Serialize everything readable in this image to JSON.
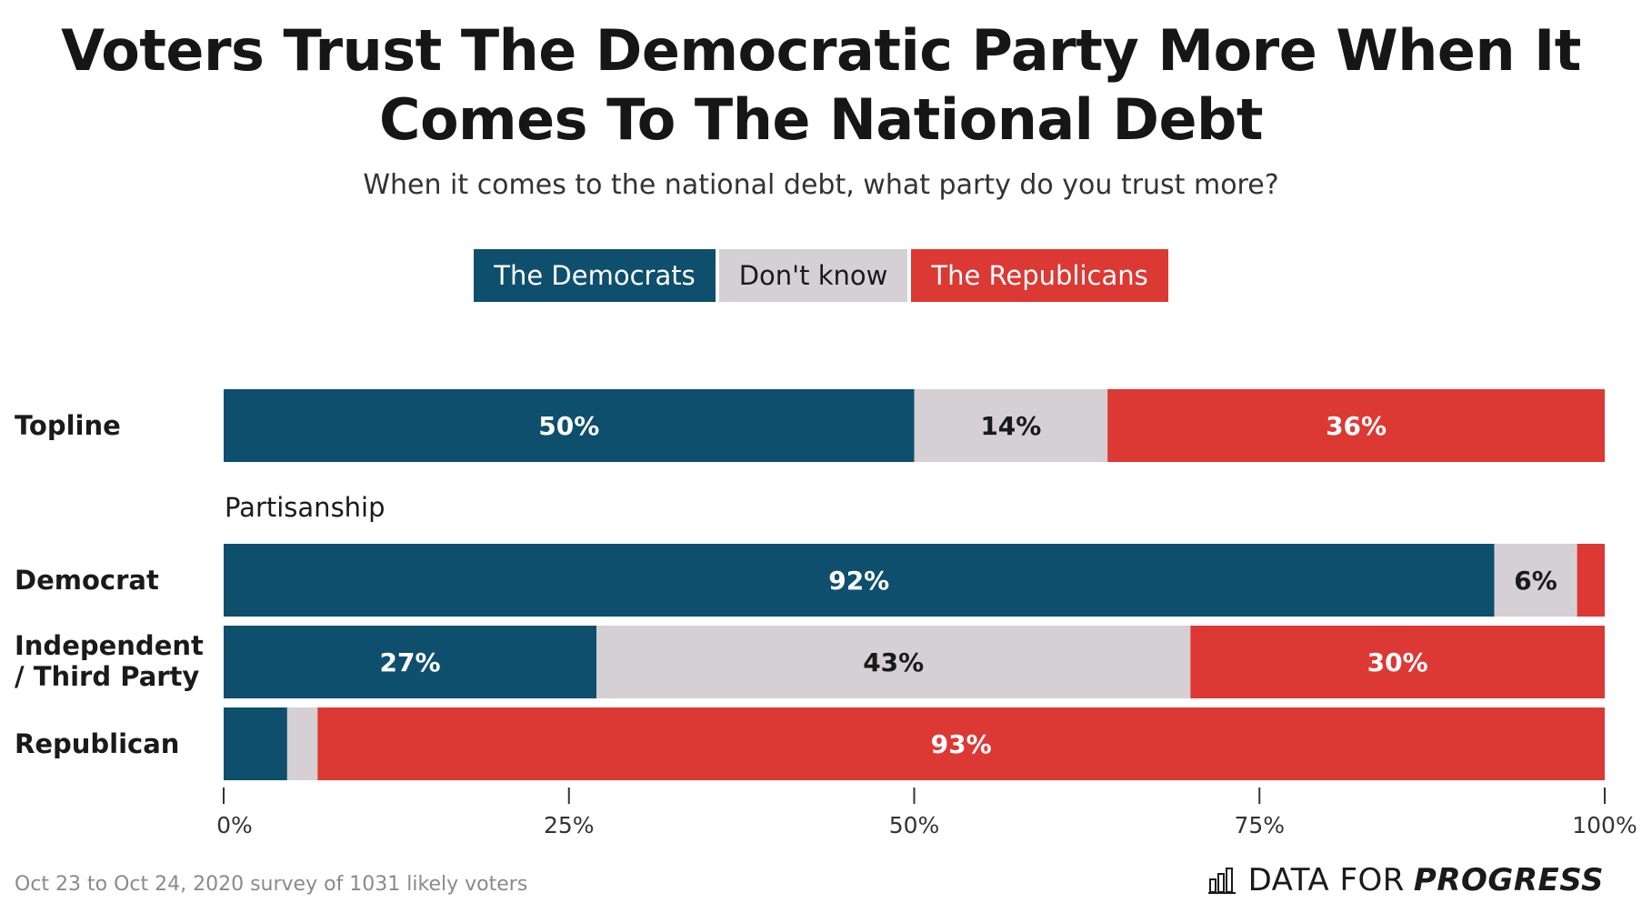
{
  "title_lines": [
    "Voters Trust The Democratic Party More When It",
    "Comes To The National Debt"
  ],
  "subtitle": "When it comes to the national debt, what party do you trust more?",
  "legend": [
    {
      "label": "The Democrats",
      "color": "#0e4f6e"
    },
    {
      "label": "Don't know",
      "color": "#d5d0d3"
    },
    {
      "label": "The Republicans",
      "color": "#dc3834"
    }
  ],
  "group_label": "Partisanship",
  "row_labels": {
    "topline": "Topline",
    "democrat": "Democrat",
    "independent_line1": "Independent",
    "independent_line2": "/ Third Party",
    "republican": "Republican"
  },
  "source": "Oct 23 to Oct 24, 2020 survey of 1031 likely voters",
  "brand": {
    "part1": "DATA FOR",
    "part2": "PROGRESS"
  },
  "chart_data": {
    "type": "bar",
    "orientation": "horizontal",
    "stacked": true,
    "categories": [
      "Topline",
      "Democrat",
      "Independent / Third Party",
      "Republican"
    ],
    "series": [
      {
        "name": "The Democrats",
        "color": "#0e4f6e",
        "values": [
          50,
          92,
          27,
          4.6
        ],
        "labels": [
          "50%",
          "92%",
          "27%",
          ""
        ]
      },
      {
        "name": "Don't know",
        "color": "#d5d0d3",
        "values": [
          14,
          6,
          43,
          2.2
        ],
        "labels": [
          "14%",
          "6%",
          "43%",
          ""
        ]
      },
      {
        "name": "The Republicans",
        "color": "#dc3834",
        "values": [
          36,
          2,
          30,
          93.2
        ],
        "labels": [
          "36%",
          "",
          "30%",
          "93%"
        ]
      }
    ],
    "xlim": [
      0,
      100
    ],
    "ticks": [
      "0%",
      "25%",
      "50%",
      "75%",
      "100%"
    ],
    "tick_values": [
      0,
      25,
      50,
      75,
      100
    ],
    "grid": false,
    "legend_position": "top-center"
  }
}
